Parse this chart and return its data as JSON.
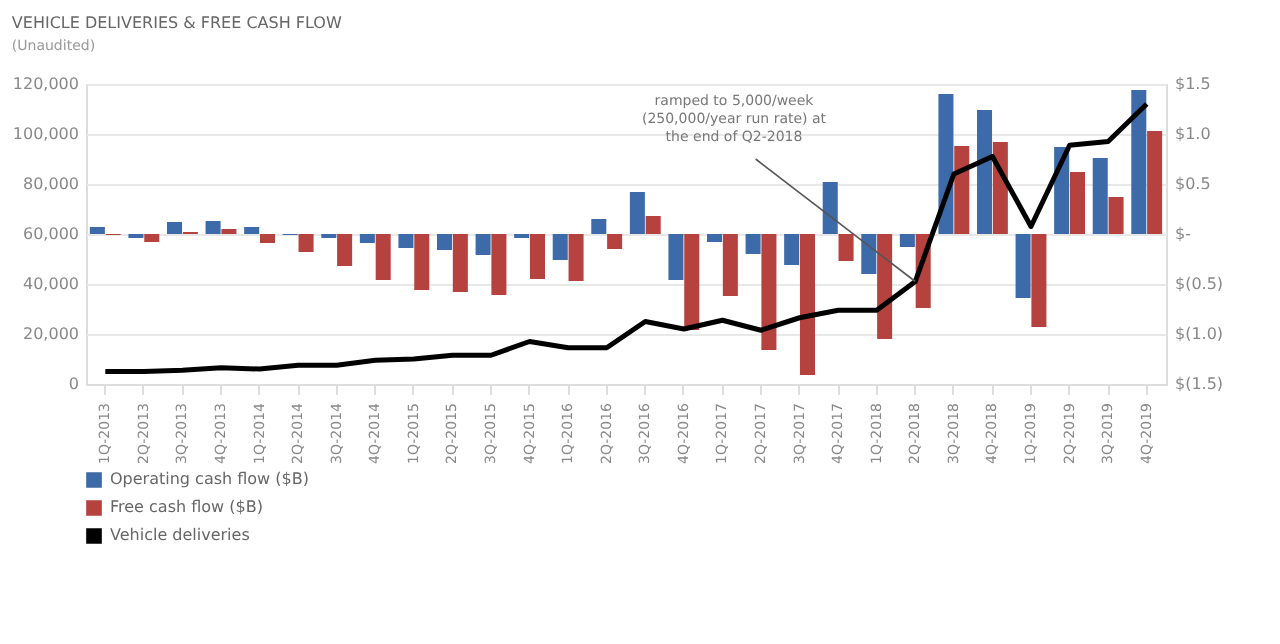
{
  "chart_data": {
    "type": "bar",
    "title": "VEHICLE DELIVERIES & FREE CASH FLOW",
    "subtitle": "(Unaudited)",
    "categories": [
      "1Q-2013",
      "2Q-2013",
      "3Q-2013",
      "4Q-2013",
      "1Q-2014",
      "2Q-2014",
      "3Q-2014",
      "4Q-2014",
      "1Q-2015",
      "2Q-2015",
      "3Q-2015",
      "4Q-2015",
      "1Q-2016",
      "2Q-2016",
      "3Q-2016",
      "4Q-2016",
      "1Q-2017",
      "2Q-2017",
      "3Q-2017",
      "4Q-2017",
      "1Q-2018",
      "2Q-2018",
      "3Q-2018",
      "4Q-2018",
      "1Q-2019",
      "2Q-2019",
      "3Q-2019",
      "4Q-2019"
    ],
    "series": [
      {
        "name": "Operating cash flow ($B)",
        "color": "#3d6aa8",
        "axis": "y2",
        "values": [
          0.07,
          -0.04,
          0.12,
          0.13,
          0.07,
          -0.01,
          -0.04,
          -0.09,
          -0.14,
          -0.16,
          -0.21,
          -0.04,
          -0.26,
          0.15,
          0.42,
          -0.46,
          -0.08,
          -0.2,
          -0.31,
          0.52,
          -0.4,
          -0.13,
          1.4,
          1.24,
          -0.64,
          0.87,
          0.76,
          1.44
        ]
      },
      {
        "name": "Free cash flow ($B)",
        "color": "#b5423f",
        "axis": "y2",
        "values": [
          -0.01,
          -0.08,
          0.02,
          0.05,
          -0.09,
          -0.18,
          -0.32,
          -0.46,
          -0.56,
          -0.58,
          -0.61,
          -0.45,
          -0.47,
          -0.15,
          0.18,
          -0.96,
          -0.62,
          -1.16,
          -1.41,
          -0.27,
          -1.05,
          -0.74,
          0.88,
          0.92,
          -0.93,
          0.62,
          0.37,
          1.03
        ]
      },
      {
        "name": "Vehicle deliveries",
        "color": "#000000",
        "type": "line",
        "axis": "y",
        "values": [
          5000,
          5000,
          5500,
          6500,
          6000,
          7500,
          7500,
          9500,
          10000,
          11500,
          11500,
          17000,
          14500,
          14500,
          25000,
          22000,
          25500,
          21500,
          26500,
          29500,
          29500,
          41000,
          84000,
          91000,
          63000,
          95500,
          97000,
          112000
        ]
      }
    ],
    "ylim": [
      0,
      120000
    ],
    "yticks": [
      0,
      {
        "value": 20000,
        "label": "20,000"
      },
      {
        "value": 40000,
        "label": "40,000"
      },
      {
        "value": 60000,
        "label": "60,000"
      },
      {
        "value": 80000,
        "label": "80,000"
      },
      {
        "value": 100000,
        "label": "100,000"
      },
      {
        "value": 120000,
        "label": "120,000"
      }
    ],
    "y2lim": [
      -1.5,
      1.5
    ],
    "y2ticks": [
      {
        "value": -1.5,
        "label": "$(1.5)"
      },
      {
        "value": -1,
        "label": "$(1.0)"
      },
      {
        "value": -0.5,
        "label": "$(0.5)"
      },
      {
        "value": 0,
        "label": "$-"
      },
      {
        "value": 0.5,
        "label": "$0.5"
      },
      {
        "value": 1,
        "label": "$1.0"
      },
      {
        "value": 1.5,
        "label": "$1.5"
      }
    ],
    "annotations": [
      {
        "text": "ramped to 5,000/week (250,000/year run rate) at the end of Q2-2018",
        "x": "2Q-2018",
        "y": 41000
      }
    ],
    "grid": "y",
    "legend": "bottom"
  }
}
